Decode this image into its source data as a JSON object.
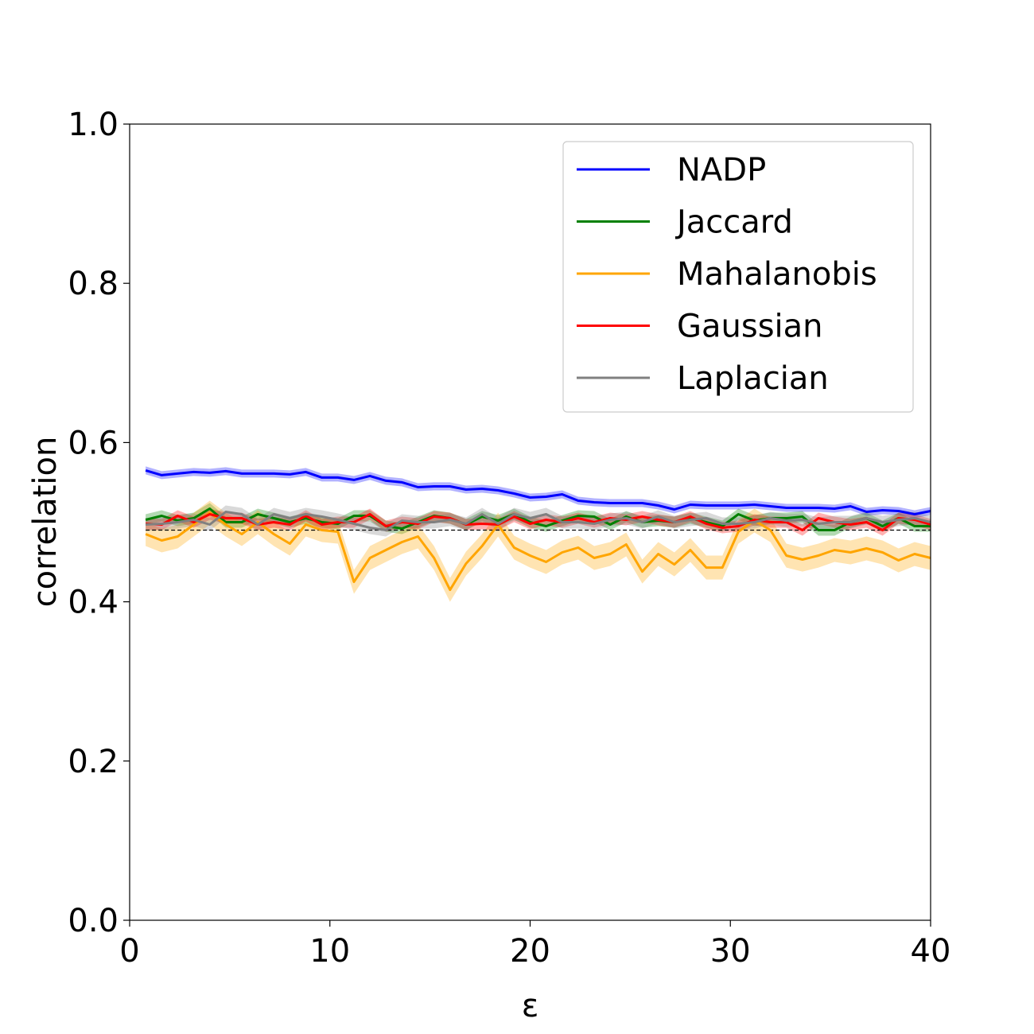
{
  "chart_data": {
    "type": "line",
    "xlabel": "ε",
    "ylabel": "correlation",
    "xlim": [
      0,
      40
    ],
    "ylim": [
      0.0,
      1.0
    ],
    "xticks": [
      "0",
      "10",
      "20",
      "30",
      "40"
    ],
    "yticks": [
      "0.0",
      "0.2",
      "0.4",
      "0.6",
      "0.8",
      "1.0"
    ],
    "grid": false,
    "legend_position": "top-right",
    "x": [
      0.8,
      1.6,
      2.4,
      3.2,
      4.0,
      4.8,
      5.6,
      6.4,
      7.2,
      8.0,
      8.8,
      9.6,
      10.4,
      11.2,
      12.0,
      12.8,
      13.6,
      14.4,
      15.2,
      16.0,
      16.8,
      17.6,
      18.4,
      19.2,
      20.0,
      20.8,
      21.6,
      22.4,
      23.2,
      24.0,
      24.8,
      25.6,
      26.4,
      27.2,
      28.0,
      28.8,
      29.6,
      30.4,
      31.2,
      32.0,
      32.8,
      33.6,
      34.4,
      35.2,
      36.0,
      36.8,
      37.6,
      38.4,
      39.2,
      40.0
    ],
    "series": [
      {
        "name": "NADP",
        "color": "#0000ff",
        "band": 0.005,
        "values": [
          0.565,
          0.559,
          0.561,
          0.563,
          0.562,
          0.564,
          0.561,
          0.561,
          0.561,
          0.56,
          0.563,
          0.556,
          0.556,
          0.553,
          0.558,
          0.552,
          0.55,
          0.544,
          0.545,
          0.545,
          0.541,
          0.542,
          0.54,
          0.536,
          0.531,
          0.532,
          0.535,
          0.527,
          0.525,
          0.524,
          0.524,
          0.524,
          0.521,
          0.516,
          0.522,
          0.521,
          0.521,
          0.521,
          0.522,
          0.52,
          0.518,
          0.518,
          0.518,
          0.517,
          0.52,
          0.513,
          0.515,
          0.514,
          0.51,
          0.514
        ]
      },
      {
        "name": "Jaccard",
        "color": "#008000",
        "band": 0.007,
        "values": [
          0.503,
          0.508,
          0.502,
          0.505,
          0.517,
          0.5,
          0.5,
          0.51,
          0.505,
          0.5,
          0.505,
          0.5,
          0.498,
          0.508,
          0.508,
          0.495,
          0.492,
          0.5,
          0.508,
          0.505,
          0.497,
          0.507,
          0.502,
          0.51,
          0.5,
          0.495,
          0.502,
          0.508,
          0.507,
          0.497,
          0.507,
          0.5,
          0.502,
          0.5,
          0.505,
          0.5,
          0.495,
          0.51,
          0.502,
          0.505,
          0.505,
          0.507,
          0.49,
          0.49,
          0.5,
          0.505,
          0.495,
          0.505,
          0.495,
          0.495
        ]
      },
      {
        "name": "Mahalanobis",
        "color": "#ffa500",
        "band": 0.015,
        "values": [
          0.485,
          0.477,
          0.482,
          0.497,
          0.512,
          0.497,
          0.485,
          0.5,
          0.485,
          0.473,
          0.497,
          0.49,
          0.488,
          0.425,
          0.455,
          0.465,
          0.475,
          0.482,
          0.455,
          0.415,
          0.448,
          0.47,
          0.497,
          0.468,
          0.458,
          0.45,
          0.462,
          0.468,
          0.455,
          0.46,
          0.472,
          0.438,
          0.46,
          0.447,
          0.465,
          0.443,
          0.443,
          0.488,
          0.502,
          0.49,
          0.458,
          0.453,
          0.458,
          0.465,
          0.462,
          0.467,
          0.462,
          0.452,
          0.46,
          0.455
        ]
      },
      {
        "name": "Gaussian",
        "color": "#ff0000",
        "band": 0.007,
        "values": [
          0.498,
          0.497,
          0.508,
          0.5,
          0.51,
          0.505,
          0.505,
          0.497,
          0.5,
          0.497,
          0.508,
          0.497,
          0.5,
          0.5,
          0.51,
          0.495,
          0.5,
          0.498,
          0.507,
          0.505,
          0.497,
          0.498,
          0.497,
          0.507,
          0.498,
          0.503,
          0.5,
          0.505,
          0.5,
          0.505,
          0.503,
          0.507,
          0.503,
          0.5,
          0.507,
          0.498,
          0.493,
          0.495,
          0.503,
          0.5,
          0.5,
          0.49,
          0.505,
          0.5,
          0.497,
          0.5,
          0.49,
          0.505,
          0.503,
          0.497
        ]
      },
      {
        "name": "Laplacian",
        "color": "#808080",
        "band": 0.008,
        "values": [
          0.497,
          0.498,
          0.5,
          0.503,
          0.497,
          0.513,
          0.51,
          0.497,
          0.51,
          0.505,
          0.51,
          0.507,
          0.503,
          0.498,
          0.493,
          0.49,
          0.502,
          0.5,
          0.5,
          0.503,
          0.498,
          0.51,
          0.498,
          0.51,
          0.505,
          0.51,
          0.5,
          0.5,
          0.498,
          0.503,
          0.505,
          0.5,
          0.507,
          0.5,
          0.503,
          0.505,
          0.498,
          0.498,
          0.5,
          0.505,
          0.502,
          0.503,
          0.498,
          0.5,
          0.5,
          0.505,
          0.5,
          0.503,
          0.505,
          0.5
        ]
      }
    ],
    "reference_line": {
      "value": 0.49,
      "style": "dashed",
      "color": "#000000"
    }
  }
}
